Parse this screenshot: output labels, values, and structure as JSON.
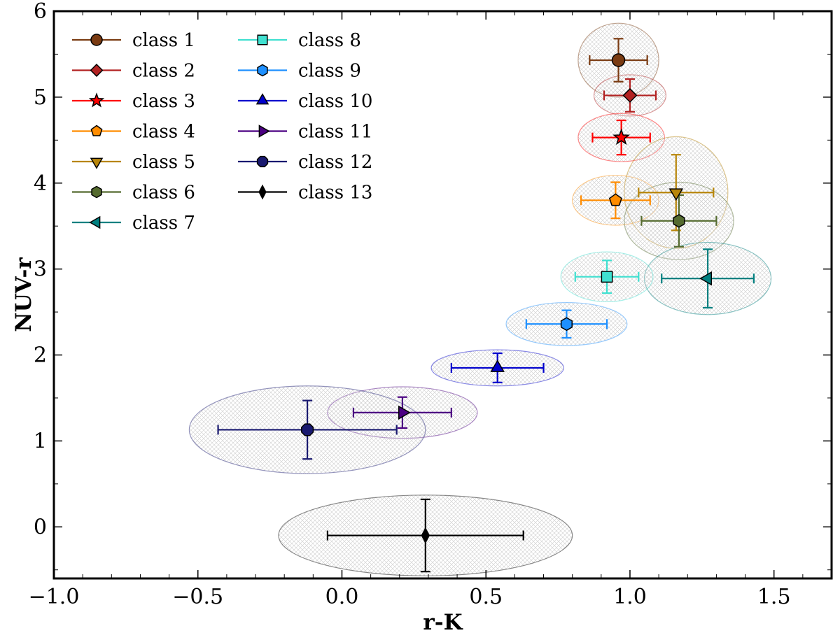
{
  "chart_data": {
    "type": "scatter",
    "title": "",
    "xlabel": "r-K",
    "ylabel": "NUV-r",
    "xlim": [
      -1.0,
      1.7
    ],
    "ylim": [
      -0.6,
      6.0
    ],
    "x_ticks": [
      -1.0,
      -0.5,
      0.0,
      0.5,
      1.0,
      1.5
    ],
    "x_tick_labels": [
      "−1.0",
      "−0.5",
      "0.0",
      "0.5",
      "1.0",
      "1.5"
    ],
    "y_ticks": [
      0,
      1,
      2,
      3,
      4,
      5,
      6
    ],
    "y_tick_labels": [
      "0",
      "1",
      "2",
      "3",
      "4",
      "5",
      "6"
    ],
    "grid": false,
    "legend_position": "top-left",
    "legend_columns": 2,
    "series": [
      {
        "name": "class 1",
        "marker": "circle",
        "color": "#7a3b12",
        "x": 0.96,
        "y": 5.43,
        "xerr": 0.1,
        "yerr": 0.25,
        "ellipse": {
          "rx": 0.14,
          "ry": 0.43
        }
      },
      {
        "name": "class 2",
        "marker": "diamond",
        "color": "#b22222",
        "x": 1.0,
        "y": 5.02,
        "xerr": 0.09,
        "yerr": 0.19,
        "ellipse": {
          "rx": 0.125,
          "ry": 0.24
        }
      },
      {
        "name": "class 3",
        "marker": "star",
        "color": "#ff0000",
        "x": 0.97,
        "y": 4.53,
        "xerr": 0.1,
        "yerr": 0.2,
        "ellipse": {
          "rx": 0.15,
          "ry": 0.28
        }
      },
      {
        "name": "class 4",
        "marker": "pentagon",
        "color": "#ff8c00",
        "x": 0.95,
        "y": 3.8,
        "xerr": 0.12,
        "yerr": 0.21,
        "ellipse": {
          "rx": 0.15,
          "ry": 0.29
        }
      },
      {
        "name": "class 5",
        "marker": "triangle-down",
        "color": "#b8860b",
        "x": 1.16,
        "y": 3.89,
        "xerr": 0.13,
        "yerr": 0.44,
        "ellipse": {
          "rx": 0.18,
          "ry": 0.65
        }
      },
      {
        "name": "class 6",
        "marker": "hexagon",
        "color": "#556b2f",
        "x": 1.17,
        "y": 3.56,
        "xerr": 0.13,
        "yerr": 0.3,
        "ellipse": {
          "rx": 0.19,
          "ry": 0.45
        }
      },
      {
        "name": "class 7",
        "marker": "triangle-left",
        "color": "#008080",
        "x": 1.27,
        "y": 2.89,
        "xerr": 0.16,
        "yerr": 0.34,
        "ellipse": {
          "rx": 0.22,
          "ry": 0.42
        }
      },
      {
        "name": "class 8",
        "marker": "square",
        "color": "#40e0d0",
        "x": 0.92,
        "y": 2.91,
        "xerr": 0.11,
        "yerr": 0.19,
        "ellipse": {
          "rx": 0.16,
          "ry": 0.29
        }
      },
      {
        "name": "class 9",
        "marker": "hexagon",
        "color": "#1e90ff",
        "x": 0.78,
        "y": 2.36,
        "xerr": 0.14,
        "yerr": 0.16,
        "ellipse": {
          "rx": 0.21,
          "ry": 0.25
        }
      },
      {
        "name": "class 10",
        "marker": "triangle-up",
        "color": "#0000cd",
        "x": 0.54,
        "y": 1.85,
        "xerr": 0.16,
        "yerr": 0.17,
        "ellipse": {
          "rx": 0.23,
          "ry": 0.21
        }
      },
      {
        "name": "class 11",
        "marker": "triangle-right",
        "color": "#4b0082",
        "x": 0.21,
        "y": 1.33,
        "xerr": 0.17,
        "yerr": 0.18,
        "ellipse": {
          "rx": 0.26,
          "ry": 0.3
        }
      },
      {
        "name": "class 12",
        "marker": "octagon",
        "color": "#191970",
        "x": -0.12,
        "y": 1.13,
        "xerr": 0.31,
        "yerr": 0.34,
        "ellipse": {
          "rx": 0.41,
          "ry": 0.51
        }
      },
      {
        "name": "class 13",
        "marker": "thin-diamond",
        "color": "#000000",
        "x": 0.29,
        "y": -0.1,
        "xerr": 0.34,
        "yerr": 0.42,
        "ellipse": {
          "rx": 0.51,
          "ry": 0.47
        }
      }
    ]
  }
}
